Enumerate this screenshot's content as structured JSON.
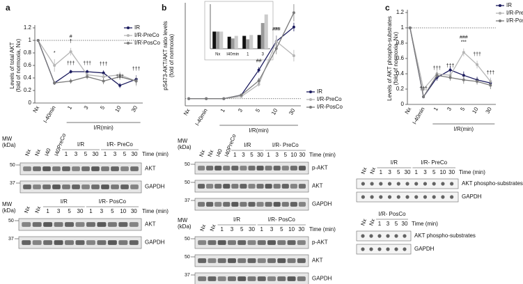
{
  "chart_data": [
    {
      "type": "line",
      "panel": "a",
      "ylabel": [
        "Levels of total AKT",
        "(fold of normoxia, Nx)"
      ],
      "xlabel": "I/R(min)",
      "categories": [
        "Nx",
        "I-40min",
        "1",
        "3",
        "5",
        "10",
        "30"
      ],
      "ylim": [
        0,
        1.2
      ],
      "yticks": [
        0,
        0.2,
        0.4,
        0.6,
        0.8,
        1,
        1.2
      ],
      "reference": 1,
      "series": [
        {
          "name": "IR",
          "color": "#1b1b5e",
          "values": [
            1,
            0.32,
            0.5,
            0.5,
            0.48,
            0.28,
            0.38
          ],
          "errors": [
            0,
            0.03,
            0.03,
            0.03,
            0.04,
            0.04,
            0.06
          ]
        },
        {
          "name": "I/R-PreCo",
          "color": "#b5b5b5",
          "values": [
            1,
            0.6,
            0.82,
            0.45,
            0.42,
            0.45,
            0.35
          ],
          "errors": [
            0,
            0.1,
            0.06,
            0.04,
            0.05,
            0.05,
            0.08
          ]
        },
        {
          "name": "I/R-PosCo",
          "color": "#7a7a7a",
          "values": [
            1,
            0.32,
            0.35,
            0.42,
            0.35,
            0.42,
            0.35
          ],
          "errors": [
            0,
            0.03,
            0.04,
            0.04,
            0.05,
            0.05,
            0.06
          ]
        }
      ],
      "annotations": [
        {
          "text": "*",
          "series": 1,
          "index": 1
        },
        {
          "text": "†",
          "series": 1,
          "index": 2
        },
        {
          "text": "#",
          "series": 1,
          "index": 2
        },
        {
          "text": "†††",
          "series": 0,
          "index": 2
        },
        {
          "text": "†††",
          "series": 0,
          "index": 3
        },
        {
          "text": "†††",
          "series": 0,
          "index": 4
        },
        {
          "text": "†††",
          "series": 0,
          "index": 5
        },
        {
          "text": "†††",
          "series": 0,
          "index": 6
        }
      ]
    },
    {
      "type": "line",
      "panel": "b",
      "ylabel": [
        "pS473-AKT/AKT ratio levels",
        "(fold of normoxia)"
      ],
      "xlabel": "I/R(min)",
      "categories": [
        "Nx",
        "I-40min",
        "1",
        "3",
        "5",
        "10",
        "30"
      ],
      "ylim": [
        0,
        14
      ],
      "reference": 1,
      "series": [
        {
          "name": "IR",
          "color": "#1b1b5e",
          "values": [
            1,
            1,
            1,
            1.5,
            5,
            9,
            11
          ],
          "errors": [
            0,
            0.1,
            0.1,
            0.2,
            0.4,
            0.8,
            0.6
          ]
        },
        {
          "name": "I/R-PreCo",
          "color": "#b5b5b5",
          "values": [
            1,
            1,
            1,
            1.3,
            3,
            9,
            7
          ],
          "errors": [
            0,
            0.1,
            0.1,
            0.2,
            0.3,
            0.8,
            0.8
          ]
        },
        {
          "name": "I/R-PosCo",
          "color": "#7a7a7a",
          "values": [
            1,
            1,
            1,
            1.5,
            3.5,
            8,
            13
          ],
          "errors": [
            0,
            0.1,
            0.1,
            0.2,
            0.4,
            0.8,
            1.2
          ]
        }
      ],
      "annotations": [
        {
          "text": "##",
          "series": 0,
          "index": 4
        },
        {
          "text": "###",
          "series": 0,
          "index": 5
        },
        {
          "text": "###",
          "series": 2,
          "index": 6
        },
        {
          "text": "***",
          "series": 2,
          "index": 6
        },
        {
          "text": "††",
          "series": 2,
          "index": 6
        },
        {
          "text": "***",
          "series": 1,
          "index": 5
        }
      ],
      "inset": {
        "type": "bar",
        "categories": [
          "Nx",
          "I40min",
          "1",
          "3"
        ],
        "ylim": [
          0,
          2.6
        ],
        "series": [
          {
            "color": "#111111",
            "values": [
              1,
              0.7,
              0.75,
              0.8
            ]
          },
          {
            "color": "#999999",
            "values": [
              1,
              0.6,
              0.55,
              1.5
            ]
          },
          {
            "color": "#cccccc",
            "values": [
              1,
              0.75,
              0.8,
              2
            ]
          }
        ]
      }
    },
    {
      "type": "line",
      "panel": "c",
      "ylabel": [
        "Levels of AKT phospho-substrates",
        "(fold of normoxia, Nx)"
      ],
      "xlabel": "I/R(min)",
      "categories": [
        "Nx",
        "I-40min",
        "1",
        "3",
        "5",
        "10",
        "30"
      ],
      "ylim": [
        0,
        1.2
      ],
      "yticks": [
        0,
        0.2,
        0.4,
        0.6,
        0.8,
        1,
        1.2
      ],
      "reference": 1,
      "series": [
        {
          "name": "IR",
          "color": "#1b1b5e",
          "values": [
            1,
            0.1,
            0.35,
            0.45,
            0.38,
            0.32,
            0.28
          ],
          "errors": [
            0,
            0.02,
            0.04,
            0.05,
            0.05,
            0.04,
            0.05
          ]
        },
        {
          "name": "I/R-PreCo",
          "color": "#b5b5b5",
          "values": [
            1,
            0.2,
            0.4,
            0.38,
            0.68,
            0.52,
            0.3
          ],
          "errors": [
            0,
            0.03,
            0.05,
            0.04,
            0.05,
            0.05,
            0.05
          ]
        },
        {
          "name": "I/R-PosCo",
          "color": "#7a7a7a",
          "values": [
            1,
            0.1,
            0.38,
            0.35,
            0.32,
            0.3,
            0.25
          ],
          "errors": [
            0,
            0.02,
            0.04,
            0.04,
            0.05,
            0.04,
            0.05
          ]
        }
      ],
      "annotations": [
        {
          "text": "***",
          "series": 1,
          "index": 4
        },
        {
          "text": "###",
          "series": 1,
          "index": 4
        },
        {
          "text": "†††",
          "series": 0,
          "index": 2
        },
        {
          "text": "†††",
          "series": 1,
          "index": 3
        },
        {
          "text": "†††",
          "series": 1,
          "index": 5
        },
        {
          "text": "†††",
          "series": 0,
          "index": 6
        },
        {
          "text": "†††",
          "series": 0,
          "index": 1
        }
      ]
    }
  ],
  "blots": [
    {
      "mw_label": [
        "MW",
        "(kDa)"
      ],
      "prefix_lanes": [
        "Nx",
        "Nx",
        "I40",
        "I40PreCo"
      ],
      "groups": [
        {
          "label": "I/R",
          "lanes": [
            "1",
            "3",
            "5",
            "30"
          ]
        },
        {
          "label": "I/R- PreCo",
          "lanes": [
            "1",
            "3",
            "5",
            "30"
          ]
        }
      ],
      "time_label": "Time (min)",
      "rows": [
        {
          "label": "AKT",
          "marker": "50"
        },
        {
          "label": "GAPDH",
          "marker": "37"
        }
      ]
    },
    {
      "mw_label": [
        "MW",
        "(kDa)"
      ],
      "prefix_lanes": [
        "Nx",
        "Nx"
      ],
      "groups": [
        {
          "label": "I/R",
          "lanes": [
            "1",
            "3",
            "5",
            "30"
          ]
        },
        {
          "label": "I/R- PosCo",
          "lanes": [
            "1",
            "3",
            "5",
            "10",
            "30"
          ]
        }
      ],
      "time_label": "Time (min)",
      "rows": [
        {
          "label": "AKT",
          "marker": "50"
        },
        {
          "label": "GAPDH",
          "marker": "37"
        }
      ]
    },
    {
      "mw_label": [
        "MW",
        "(kDa)"
      ],
      "prefix_lanes": [
        "Nx",
        "Nx",
        "I40",
        "I40PreCo"
      ],
      "groups": [
        {
          "label": "I/R",
          "lanes": [
            "1",
            "3",
            "5",
            "30"
          ]
        },
        {
          "label": "I/R- PreCo",
          "lanes": [
            "1",
            "3",
            "5",
            "10",
            "30"
          ]
        }
      ],
      "time_label": "Time (min)",
      "rows": [
        {
          "label": "p-AKT",
          "marker": "50"
        },
        {
          "label": "AKT",
          "marker": "50"
        },
        {
          "label": "GAPDH",
          "marker": "37"
        }
      ]
    },
    {
      "mw_label": [
        "MW",
        "(kDa)"
      ],
      "prefix_lanes": [
        "Nx",
        "Nx"
      ],
      "groups": [
        {
          "label": "I/R",
          "lanes": [
            "1",
            "3",
            "5",
            "30"
          ]
        },
        {
          "label": "I/R- PosCo",
          "lanes": [
            "1",
            "3",
            "5",
            "10",
            "30"
          ]
        }
      ],
      "time_label": "Time (min)",
      "rows": [
        {
          "label": "p-AKT",
          "marker": "50"
        },
        {
          "label": "AKT",
          "marker": "50"
        },
        {
          "label": "GAPDH",
          "marker": "37"
        }
      ]
    },
    {
      "prefix_lanes": [
        "Nx",
        "Nx"
      ],
      "groups": [
        {
          "label": "I/R",
          "lanes": [
            "1",
            "3",
            "5",
            "30"
          ]
        },
        {
          "label": "I/R- PreCo",
          "lanes": [
            "1",
            "3",
            "5",
            "10",
            "30"
          ]
        }
      ],
      "time_label": "Time (min)",
      "rows": [
        {
          "label": "AKT phospho-substrates"
        },
        {
          "label": "GAPDH"
        }
      ]
    },
    {
      "prefix_lanes": [
        "Nx",
        "Nx"
      ],
      "groups": [
        {
          "label": "I/R- PosCo",
          "lanes": [
            "1",
            "3",
            "5",
            "30"
          ]
        }
      ],
      "time_label": "Time (min)",
      "rows": [
        {
          "label": "AKT phospho-substrates"
        },
        {
          "label": "GAPDH"
        }
      ]
    }
  ]
}
